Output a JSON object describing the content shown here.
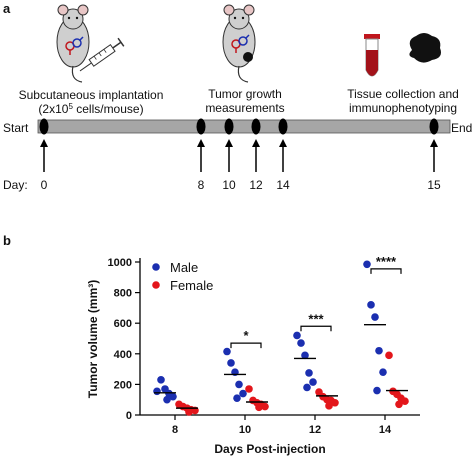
{
  "panel_a": {
    "letter": "a",
    "start_label": "Start",
    "end_label": "End",
    "day_label": "Day:",
    "events": [
      {
        "day": "0",
        "label_lines": [
          "Subcutaneous implantation",
          "(2x10",
          "5",
          " cells/mouse)"
        ]
      },
      {
        "day": "8",
        "label_lines": [
          "Tumor growth",
          "measurements"
        ]
      },
      {
        "day": "10"
      },
      {
        "day": "12"
      },
      {
        "day": "14"
      },
      {
        "day": "15",
        "label_lines": [
          "Tissue collection and",
          "immunophenotyping"
        ]
      }
    ],
    "timeline_color": "#a6a6a6",
    "marker_color": "#000000",
    "tube_liquid_color": "#c0161d"
  },
  "panel_b": {
    "letter": "b",
    "chart_data": {
      "type": "scatter",
      "xlabel": "Days Post-injection",
      "ylabel": "Tumor volume (mm³)",
      "ylim": [
        0,
        1000
      ],
      "yticks": [
        "0",
        "200",
        "400",
        "600",
        "800",
        "1000"
      ],
      "categories": [
        "8",
        "10",
        "12",
        "14"
      ],
      "series": [
        {
          "name": "Male",
          "color": "#1b2fb0",
          "points": [
            [
              155,
              230,
              170,
              140,
              120,
              100
            ],
            [
              415,
              340,
              280,
              200,
              140,
              110
            ],
            [
              520,
              470,
              390,
              275,
              215,
              180
            ],
            [
              985,
              720,
              640,
              420,
              280,
              160
            ]
          ],
          "means": [
            145,
            265,
            370,
            590
          ]
        },
        {
          "name": "Female",
          "color": "#e3161b",
          "points": [
            [
              70,
              55,
              45,
              35,
              30,
              20
            ],
            [
              170,
              95,
              80,
              70,
              55,
              50
            ],
            [
              150,
              120,
              100,
              95,
              80,
              60
            ],
            [
              390,
              155,
              135,
              110,
              90,
              70
            ]
          ],
          "means": [
            45,
            85,
            125,
            160
          ]
        }
      ],
      "significance": [
        {
          "category": "10",
          "label": "*",
          "y": 470
        },
        {
          "category": "12",
          "label": "***",
          "y": 580
        },
        {
          "category": "14",
          "label": "****",
          "y": 955
        }
      ],
      "legend_position": "top-left"
    }
  }
}
